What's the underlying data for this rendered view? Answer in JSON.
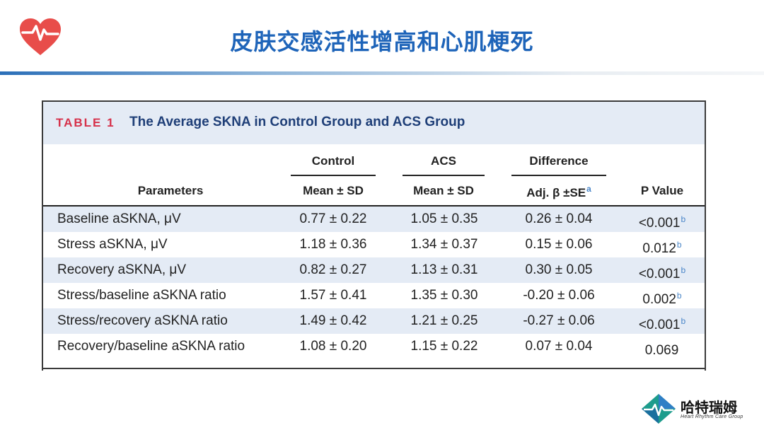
{
  "slide": {
    "title": "皮肤交感活性增高和心肌梗死"
  },
  "table": {
    "label": "TABLE 1",
    "caption": "The Average SKNA in Control Group and ACS Group",
    "group_headers": [
      "Control",
      "ACS",
      "Difference"
    ],
    "column_headers": [
      "Parameters",
      "Mean ± SD",
      "Mean ± SD",
      "Adj. β ±SE",
      "P Value"
    ],
    "column_header_superscripts": {
      "adj": "a"
    },
    "rows": [
      {
        "param": "Baseline aSKNA, μV",
        "control": "0.77 ± 0.22",
        "acs": "1.05 ± 0.35",
        "diff": "0.26 ± 0.04",
        "p": "<0.001",
        "sup": "b"
      },
      {
        "param": "Stress aSKNA, μV",
        "control": "1.18 ± 0.36",
        "acs": "1.34 ± 0.37",
        "diff": "0.15 ± 0.06",
        "p": "0.012",
        "sup": "b"
      },
      {
        "param": "Recovery aSKNA, μV",
        "control": "0.82 ± 0.27",
        "acs": "1.13 ± 0.31",
        "diff": "0.30 ± 0.05",
        "p": "<0.001",
        "sup": "b"
      },
      {
        "param": "Stress/baseline aSKNA ratio",
        "control": "1.57 ± 0.41",
        "acs": "1.35 ± 0.30",
        "diff": "-0.20 ± 0.06",
        "p": "0.002",
        "sup": "b"
      },
      {
        "param": "Stress/recovery aSKNA ratio",
        "control": "1.49 ± 0.42",
        "acs": "1.21 ± 0.25",
        "diff": "-0.27 ± 0.06",
        "p": "<0.001",
        "sup": "b"
      },
      {
        "param": "Recovery/baseline aSKNA ratio",
        "control": "1.08 ± 0.20",
        "acs": "1.15 ± 0.22",
        "diff": "0.07 ± 0.04",
        "p": "0.069",
        "sup": ""
      }
    ]
  },
  "brand": {
    "name_cn": "哈特瑞姆",
    "name_en": "Heart Rhythm Care Group",
    "logo_icon": "heart-pulse-icon",
    "brand_icon": "diamond-pulse-icon"
  },
  "colors": {
    "title": "#1e64b9",
    "caption_label": "#d6314a",
    "caption_text": "#1f3f78",
    "row_shade": "#e4ebf5",
    "heart": "#e84d4a"
  }
}
